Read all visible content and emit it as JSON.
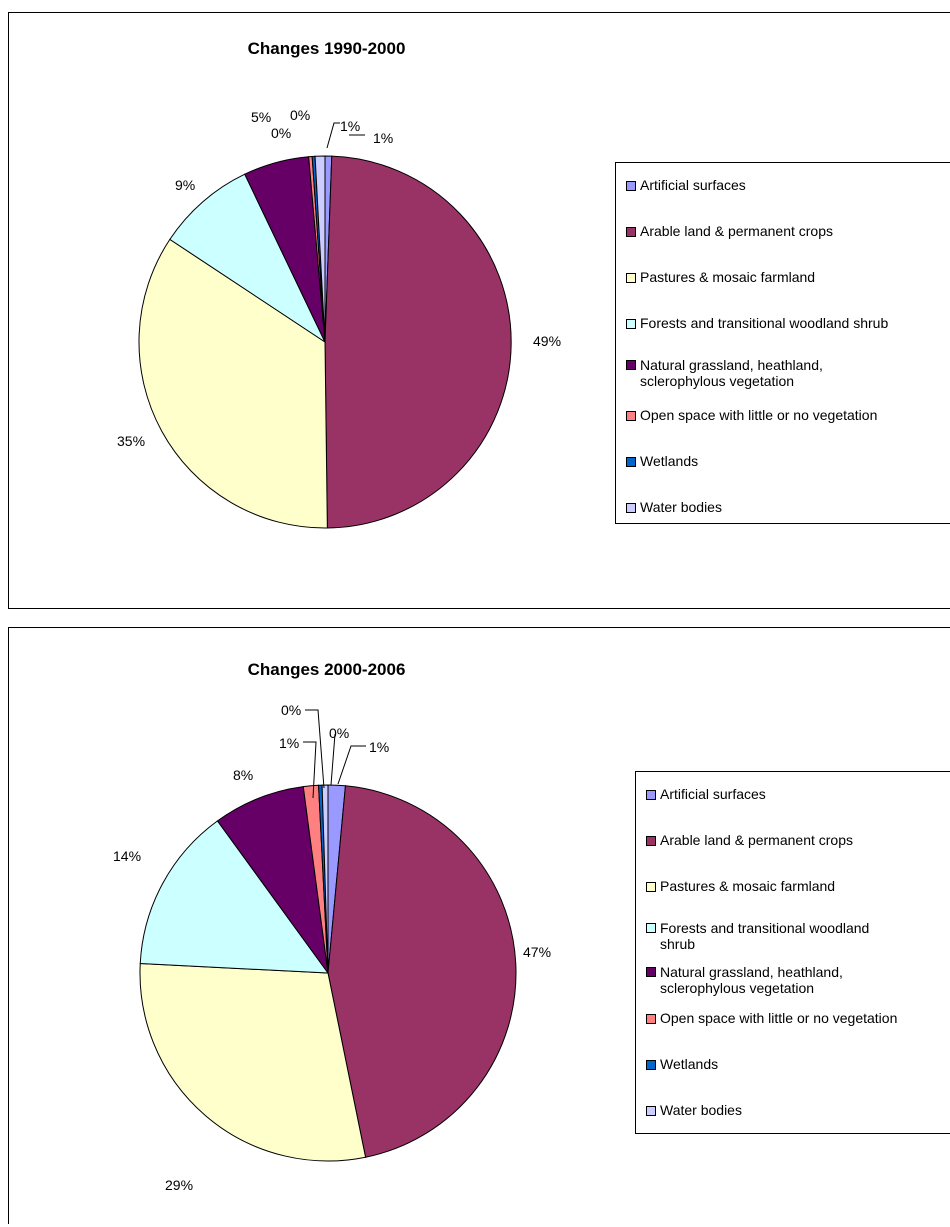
{
  "chart_data": [
    {
      "type": "pie",
      "title": "Changes 1990-2000",
      "categories": [
        "Artificial surfaces",
        "Arable land & permanent crops",
        "Pastures & mosaic farmland",
        "Forests and transitional woodland shrub",
        "Natural grassland, heathland, sclerophylous vegetation",
        "Open space with little or no vegetation",
        "Wetlands",
        "Water bodies"
      ],
      "values": [
        1,
        49,
        35,
        9,
        5,
        0,
        0,
        1
      ],
      "value_labels": [
        "1%",
        "49%",
        "35%",
        "9%",
        "5%",
        "0%",
        "0%",
        "1%"
      ],
      "colors": [
        "#9999FF",
        "#993366",
        "#FFFFCC",
        "#CCFFFF",
        "#660066",
        "#FF8080",
        "#0066CC",
        "#CCCCFF"
      ],
      "legend_position": "right"
    },
    {
      "type": "pie",
      "title": "Changes 2000-2006",
      "categories": [
        "Artificial surfaces",
        "Arable land & permanent crops",
        "Pastures & mosaic farmland",
        "Forests and transitional woodland shrub",
        "Natural grassland, heathland, sclerophylous vegetation",
        "Open space with little or no vegetation",
        "Wetlands",
        "Water bodies"
      ],
      "values": [
        1,
        47,
        29,
        14,
        8,
        1,
        0,
        0
      ],
      "value_labels": [
        "1%",
        "47%",
        "29%",
        "14%",
        "8%",
        "1%",
        "0%",
        "0%"
      ],
      "colors": [
        "#9999FF",
        "#993366",
        "#FFFFCC",
        "#CCFFFF",
        "#660066",
        "#FF8080",
        "#0066CC",
        "#CCCCFF"
      ],
      "legend_position": "right"
    }
  ]
}
